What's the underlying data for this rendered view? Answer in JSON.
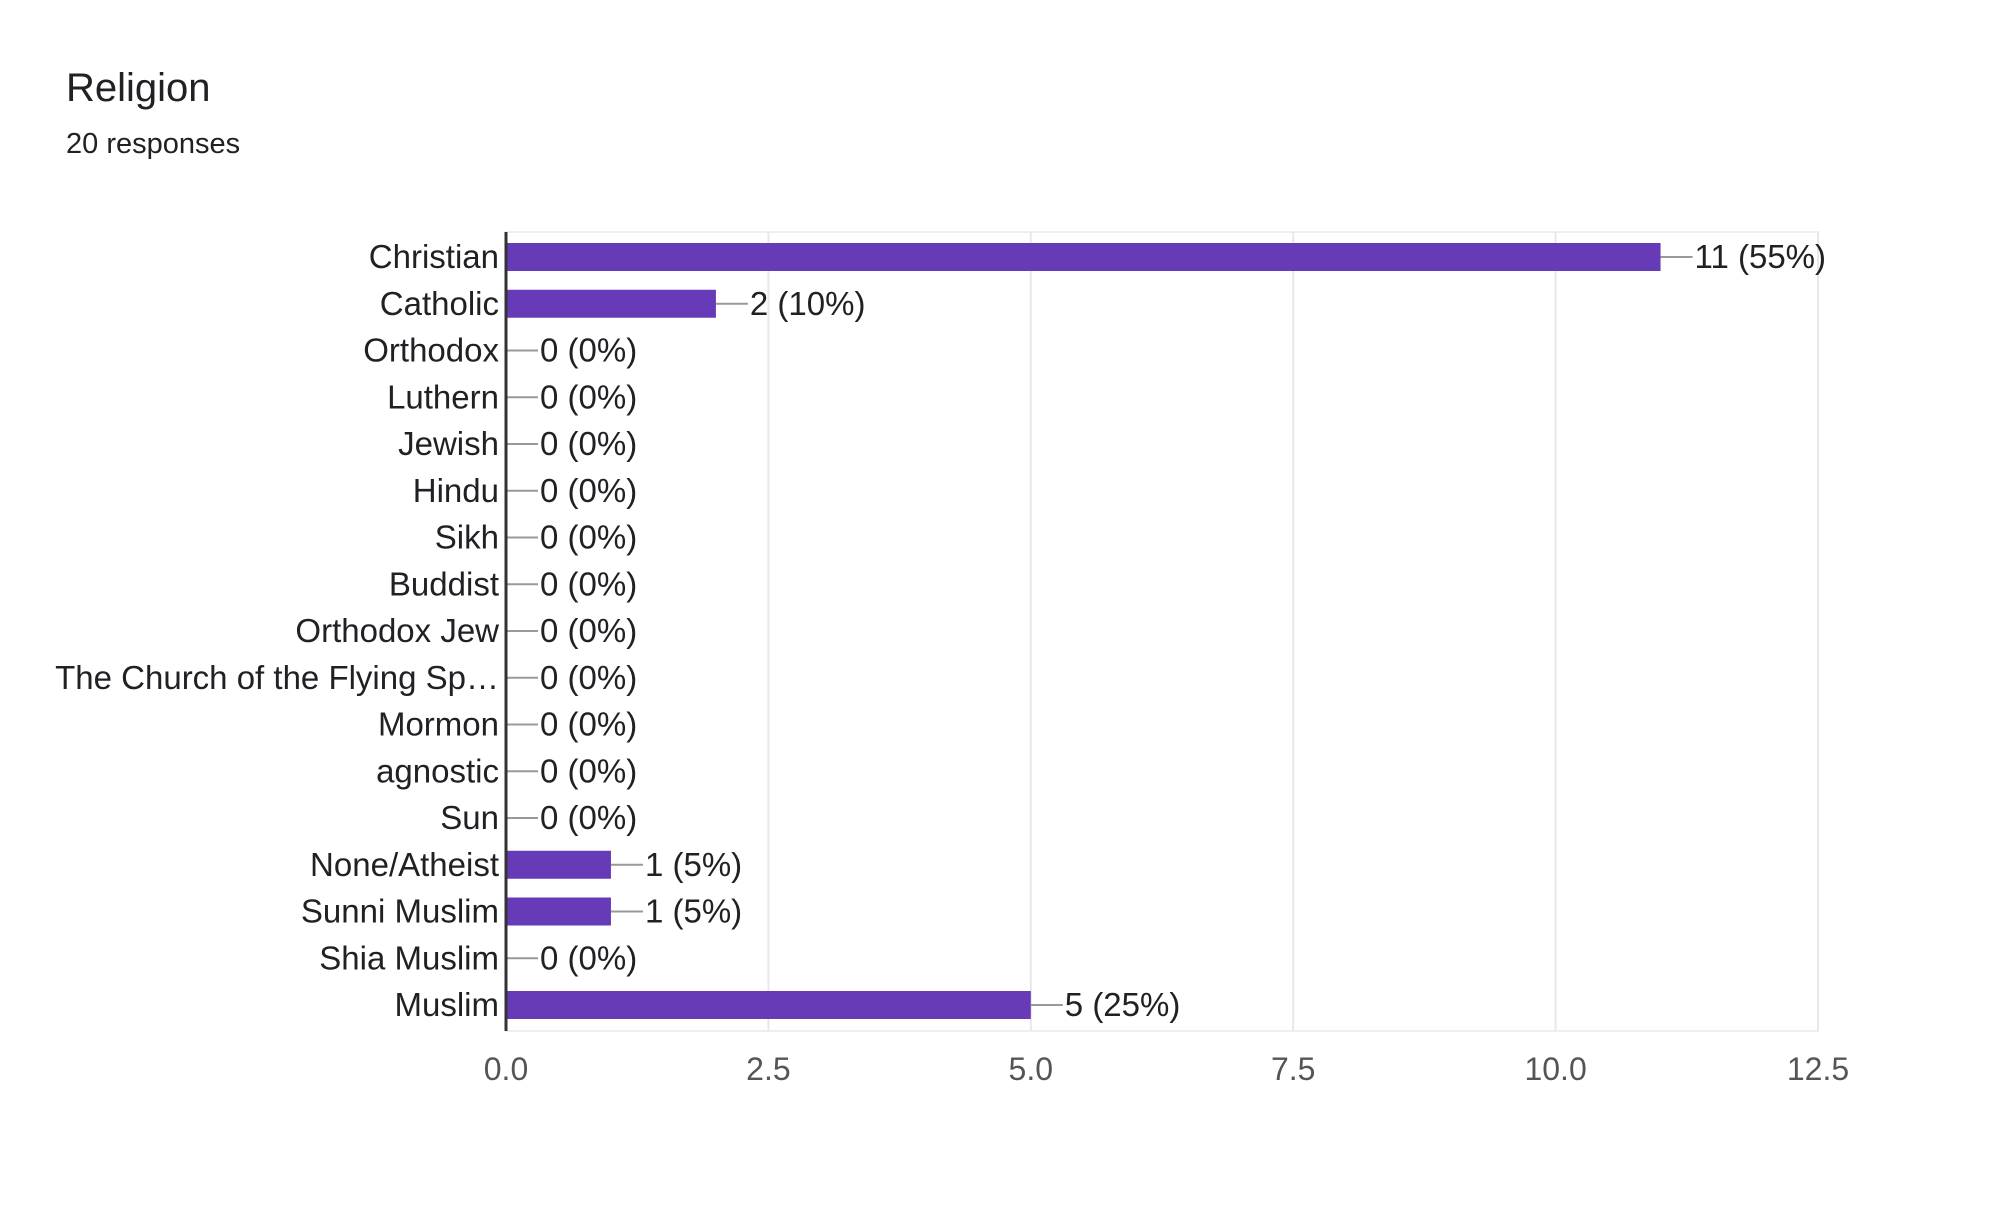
{
  "header": {
    "title": "Religion",
    "subtitle": "20 responses"
  },
  "chart_data": {
    "type": "bar",
    "orientation": "horizontal",
    "title": "Religion",
    "subtitle": "20 responses",
    "xlabel": "",
    "ylabel": "",
    "categories": [
      "Christian",
      "Catholic",
      "Orthodox",
      "Luthern",
      "Jewish",
      "Hindu",
      "Sikh",
      "Buddist",
      "Orthodox Jew",
      "The Church of the Flying Sp…",
      "Mormon",
      "agnostic",
      "Sun",
      "None/Atheist",
      "Sunni Muslim",
      "Shia Muslim",
      "Muslim"
    ],
    "values": [
      11,
      2,
      0,
      0,
      0,
      0,
      0,
      0,
      0,
      0,
      0,
      0,
      0,
      1,
      1,
      0,
      5
    ],
    "data_labels": [
      "11 (55%)",
      "2 (10%)",
      "0 (0%)",
      "0 (0%)",
      "0 (0%)",
      "0 (0%)",
      "0 (0%)",
      "0 (0%)",
      "0 (0%)",
      "0 (0%)",
      "0 (0%)",
      "0 (0%)",
      "0 (0%)",
      "1 (5%)",
      "1 (5%)",
      "0 (0%)",
      "5 (25%)"
    ],
    "xlim": [
      0,
      12.5
    ],
    "xticks": [
      "0.0",
      "2.5",
      "5.0",
      "7.5",
      "10.0",
      "12.5"
    ],
    "grid": true,
    "legend": "none",
    "bar_color": "#673ab7"
  }
}
